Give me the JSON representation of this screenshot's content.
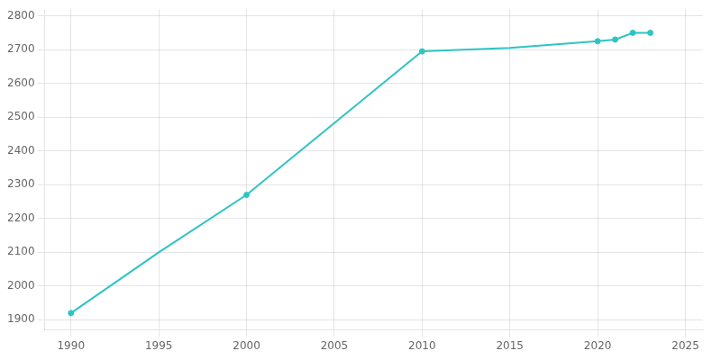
{
  "chart_data": {
    "type": "line",
    "x": [
      1990,
      1995,
      2000,
      2010,
      2015,
      2020,
      2021,
      2022,
      2023
    ],
    "series": [
      {
        "type": "line",
        "color": "#2EC4C4",
        "marker": "none",
        "values": [
          1920,
          2100,
          2270,
          2695,
          2705,
          2725,
          2730,
          2750,
          2750
        ]
      },
      {
        "type": "scatter",
        "color": "#2EC4C4",
        "marker": "circle",
        "x": [
          1990,
          2000,
          2010,
          2020,
          2021,
          2022,
          2023
        ],
        "values": [
          1920,
          2270,
          2695,
          2725,
          2730,
          2750,
          2750
        ]
      }
    ],
    "xlim": [
      1988.5,
      2026
    ],
    "ylim": [
      1870,
      2820
    ],
    "xticks": [
      1990,
      1995,
      2000,
      2005,
      2010,
      2015,
      2020,
      2025
    ],
    "yticks": [
      1900,
      2000,
      2100,
      2200,
      2300,
      2400,
      2500,
      2600,
      2700,
      2800
    ],
    "grid": true
  }
}
